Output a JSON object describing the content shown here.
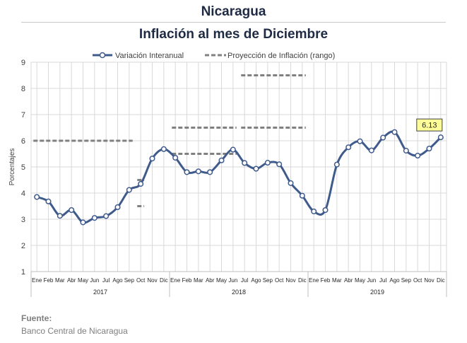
{
  "header": {
    "title": "Nicaragua",
    "subtitle": "Inflación al mes de Diciembre"
  },
  "source": {
    "label": "Fuente:",
    "value": "Banco Central de Nicaragua"
  },
  "colors": {
    "series": "#3f5b8c",
    "projection": "#808080",
    "grid": "#d9d9d9",
    "callout_fill": "#ffff99"
  },
  "chart_data": {
    "type": "line",
    "title": "",
    "ylabel": "Porcentajes",
    "ylim": [
      1,
      9
    ],
    "yticks": [
      1,
      2,
      3,
      4,
      5,
      6,
      7,
      8,
      9
    ],
    "grid": true,
    "legend_position": "top",
    "month_labels": [
      "Ene",
      "Feb",
      "Mar",
      "Abr",
      "May",
      "Jun",
      "Jul",
      "Ago",
      "Sep",
      "Oct",
      "Nov",
      "Dic"
    ],
    "years": [
      "2017",
      "2018",
      "2019"
    ],
    "series": [
      {
        "name": "Variación Interanual",
        "values": [
          3.85,
          3.68,
          3.13,
          3.35,
          2.88,
          3.05,
          3.12,
          3.46,
          4.12,
          4.35,
          5.32,
          5.68,
          5.35,
          4.8,
          4.83,
          4.8,
          5.25,
          5.66,
          5.15,
          4.93,
          5.16,
          5.1,
          4.38,
          3.9,
          3.3,
          3.35,
          5.09,
          5.75,
          5.98,
          5.63,
          6.12,
          6.33,
          5.62,
          5.43,
          5.7,
          6.13
        ]
      }
    ],
    "projection": {
      "name": "Proyección de Inflación (rango)",
      "segments": [
        {
          "year": "2017",
          "from_month": "Ene",
          "to_month": "Sep",
          "value": 6.0
        },
        {
          "year": "2017",
          "from_month": "Oct",
          "to_month": "Oct",
          "value": 4.5
        },
        {
          "year": "2017",
          "from_month": "Oct",
          "to_month": "Oct",
          "value": 3.5
        },
        {
          "year": "2018",
          "from_month": "Ene",
          "to_month": "Jun",
          "value": 6.5
        },
        {
          "year": "2018",
          "from_month": "Ene",
          "to_month": "Jun",
          "value": 5.5
        },
        {
          "year": "2018",
          "from_month": "Jul",
          "to_month": "Dic",
          "value": 8.5
        },
        {
          "year": "2018",
          "from_month": "Jul",
          "to_month": "Dic",
          "value": 6.5
        }
      ]
    },
    "callout": {
      "text": "6.13"
    }
  }
}
